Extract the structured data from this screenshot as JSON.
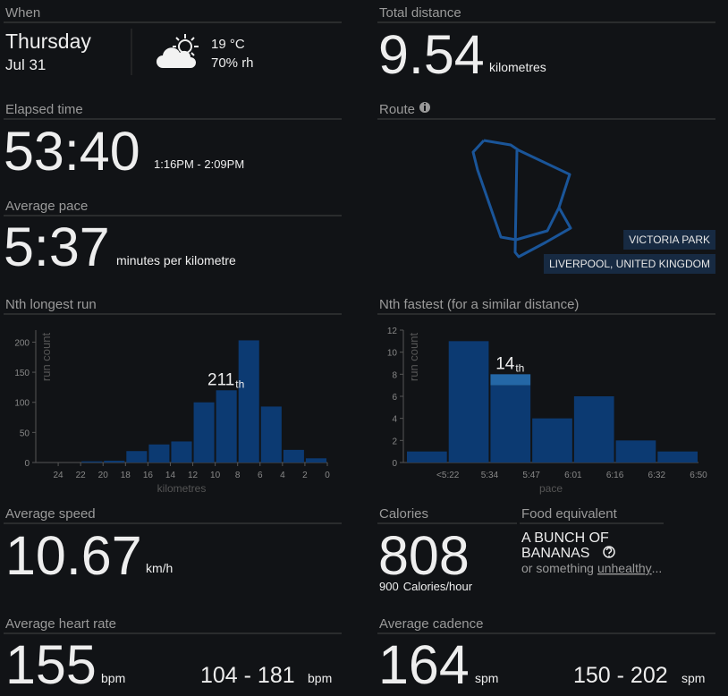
{
  "when": {
    "label": "When",
    "day": "Thursday",
    "date": "Jul 31",
    "temperature": "19 °C",
    "humidity": "70% rh"
  },
  "total_distance": {
    "label": "Total distance",
    "value": 9.54,
    "unit": "kilometres"
  },
  "elapsed_time": {
    "label": "Elapsed time",
    "value": "53:40",
    "range": "1:16PM - 2:09PM"
  },
  "route": {
    "label": "Route",
    "places": [
      "VICTORIA PARK",
      "LIVERPOOL, UNITED KINGDOM"
    ]
  },
  "average_pace": {
    "label": "Average pace",
    "value": "5:37",
    "unit": "minutes per kilometre"
  },
  "chart_data": [
    {
      "type": "histogram",
      "title": "Nth longest run",
      "y_label": "run count",
      "x_label": "kilometres",
      "bins": [
        22,
        20,
        18,
        16,
        14,
        12,
        10,
        8,
        6,
        4,
        2,
        0
      ],
      "values": [
        2,
        3,
        19,
        30,
        35,
        100,
        120,
        203,
        93,
        21,
        7
      ],
      "color": "#0c3a72",
      "xlim": [
        26,
        0
      ],
      "xticks": [
        24,
        22,
        20,
        18,
        16,
        14,
        12,
        10,
        8,
        6,
        4,
        2,
        0
      ],
      "ylim": [
        0,
        220
      ],
      "yticks": [
        0,
        50,
        100,
        150,
        200
      ],
      "annotation": "211",
      "annotation_suffix": "th",
      "annotation_bin": 6
    },
    {
      "type": "histogram",
      "title": "Nth fastest (for a similar distance)",
      "y_label": "run count",
      "x_label": "pace",
      "bin_labels": [
        null,
        "<5:22",
        "5:34",
        "5:47",
        "6:01",
        "6:16",
        "6:32",
        "6:50"
      ],
      "values": [
        1,
        11,
        8,
        4,
        6,
        2,
        1
      ],
      "color": "#0c3a72",
      "highlight_color": "#2467a6",
      "highlight_bin": 2,
      "highlight_count": 1,
      "ylim": [
        0,
        12
      ],
      "yticks": [
        0,
        2,
        4,
        6,
        8,
        10,
        12
      ],
      "annotation": "14",
      "annotation_suffix": "th",
      "annotation_bin": 2
    }
  ],
  "average_speed": {
    "label": "Average speed",
    "value": 10.67,
    "unit": "km/h"
  },
  "calories": {
    "label": "Calories",
    "value": 808,
    "rate": 900,
    "rate_unit": "Calories/hour"
  },
  "food": {
    "label": "Food equivalent",
    "line1": "A BUNCH OF",
    "line2": "BANANAS",
    "note_prefix": "or something",
    "note_link": "unhealthy",
    "note_suffix": "..."
  },
  "heart_rate": {
    "label": "Average heart rate",
    "value": 155,
    "unit": "bpm",
    "range": "104 - 181",
    "range_unit": "bpm"
  },
  "cadence": {
    "label": "Average cadence",
    "value": 164,
    "unit": "spm",
    "range": "150 - 202",
    "range_unit": "spm"
  }
}
